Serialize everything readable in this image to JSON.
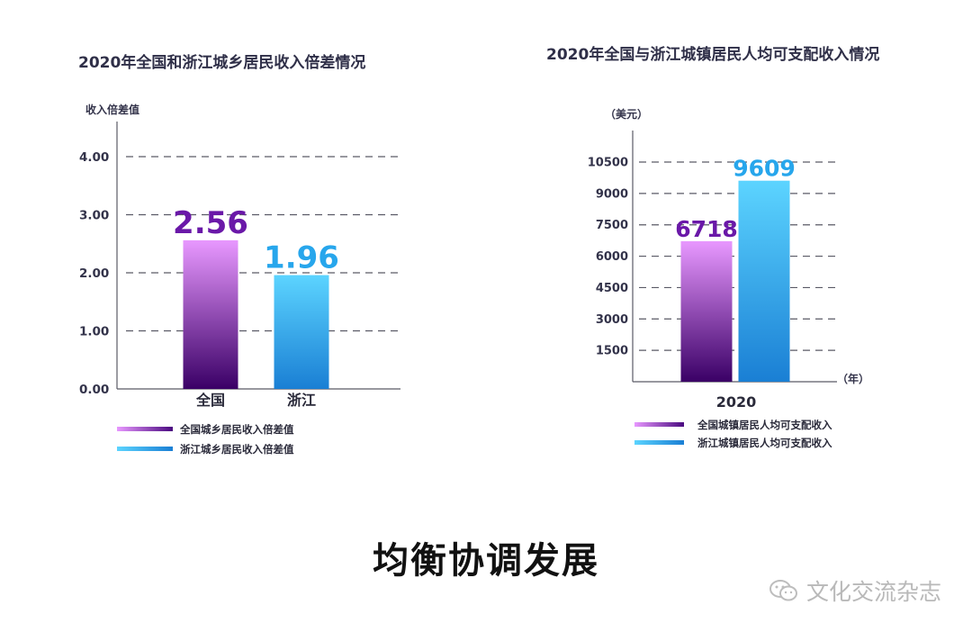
{
  "caption": "均衡协调发展",
  "watermark": "文化交流杂志",
  "colors": {
    "national_top": "#e898ff",
    "national_bottom": "#3a0066",
    "national_label": "#6a18a8",
    "zhejiang_top": "#5cd4ff",
    "zhejiang_bottom": "#1a7fd4",
    "zhejiang_label": "#27a6ec"
  },
  "chart_data": [
    {
      "type": "bar",
      "title": "2020年全国和浙江城乡居民收入倍差情况",
      "ylabel": "收入倍差值",
      "xlabel": "",
      "ylim": [
        0,
        4
      ],
      "yticks": [
        "0.00",
        "1.00",
        "2.00",
        "3.00",
        "4.00"
      ],
      "grid": true,
      "categories": [
        "全国",
        "浙江"
      ],
      "values": [
        2.56,
        1.96
      ],
      "value_labels": [
        "2.56",
        "1.96"
      ],
      "legend_position": "bottom-left",
      "legend": [
        "全国城乡居民收入倍差值",
        "浙江城乡居民收入倍差值"
      ]
    },
    {
      "type": "bar",
      "title": "2020年全国与浙江城镇居民人均可支配收入情况",
      "ylabel": "（美元）",
      "xlabel": "（年）",
      "ylim": [
        0,
        10500
      ],
      "yticks": [
        "1500",
        "3000",
        "4500",
        "6000",
        "7500",
        "9000",
        "10500"
      ],
      "grid": true,
      "categories": [
        "2020"
      ],
      "series": [
        {
          "name": "全国城镇居民人均可支配收入",
          "values": [
            6718
          ],
          "label": "6718"
        },
        {
          "name": "浙江城镇居民人均可支配收入",
          "values": [
            9609
          ],
          "label": "9609"
        }
      ],
      "legend_position": "bottom"
    }
  ]
}
